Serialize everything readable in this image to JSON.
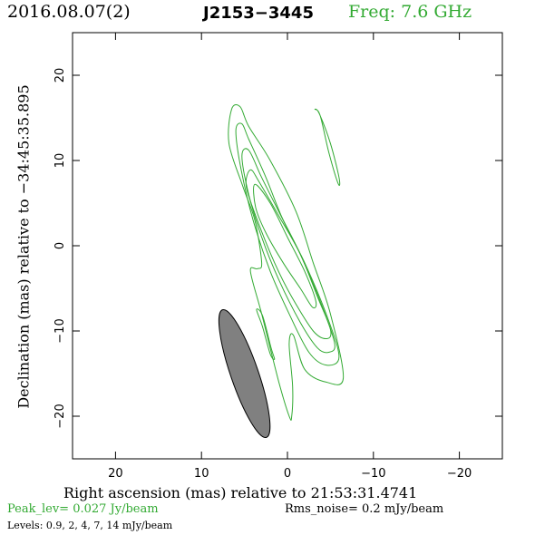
{
  "header": {
    "date": "2016.08.07(2)",
    "source": "J2153−3445",
    "frequency": "Freq: 7.6 GHz"
  },
  "footer": {
    "peak": "Peak_lev=  0.027 Jy/beam",
    "rms": "Rms_noise=   0.2 mJy/beam",
    "levels": "Levels: 0.9,    2,    4,    7,   14 mJy/beam"
  },
  "colors": {
    "contour": "#33aa33",
    "beam_fill": "#808080",
    "title_freq": "#33aa33"
  },
  "chart_data": {
    "type": "contour",
    "xlabel": "Right ascension (mas) relative to 21:53:31.4741",
    "ylabel": "Declination (mas) relative to −34:45:35.895",
    "xlim": [
      25,
      -25
    ],
    "ylim": [
      -25,
      25
    ],
    "x_ticks": [
      20,
      10,
      0,
      -10,
      -20
    ],
    "y_ticks": [
      20,
      10,
      0,
      -10,
      -20
    ],
    "x_tick_labels": [
      "20",
      "10",
      "0",
      "−10",
      "−20"
    ],
    "y_tick_labels": [
      "20",
      "10",
      "0",
      "−10",
      "−20"
    ],
    "contour_levels_mJy": [
      0.9,
      2,
      4,
      7,
      14
    ],
    "contours": [
      {
        "level": 0.9,
        "points": [
          [
            -6.5,
            -15.5
          ],
          [
            -5,
            -8
          ],
          [
            -3,
            -2
          ],
          [
            -1,
            4
          ],
          [
            2,
            10
          ],
          [
            4.5,
            14
          ],
          [
            5.5,
            16.3
          ],
          [
            6.5,
            16
          ],
          [
            6.8,
            12
          ],
          [
            5.2,
            7
          ],
          [
            3.8,
            3
          ],
          [
            3,
            -2
          ],
          [
            3.5,
            -2.7
          ],
          [
            4.3,
            -3
          ],
          [
            3,
            -8
          ],
          [
            1,
            -16
          ],
          [
            -0.2,
            -20
          ],
          [
            -0.5,
            -20
          ],
          [
            -0.6,
            -16.5
          ],
          [
            -0.2,
            -11.5
          ],
          [
            -0.7,
            -10.5
          ],
          [
            -2,
            -14.5
          ],
          [
            -4.5,
            -16
          ]
        ]
      },
      {
        "level": 0.9,
        "points": [
          [
            -3.2,
            16
          ],
          [
            -3.8,
            15.3
          ],
          [
            -4.8,
            11
          ],
          [
            -5.9,
            7.3
          ],
          [
            -6,
            8
          ],
          [
            -5,
            12
          ],
          [
            -3.7,
            15.5
          ]
        ]
      },
      {
        "level": 0.9,
        "points": [
          [
            3.6,
            -7.5
          ],
          [
            2.9,
            -8.2
          ],
          [
            1.9,
            -12
          ],
          [
            1.5,
            -13.3
          ],
          [
            2,
            -12.7
          ],
          [
            2.9,
            -9.5
          ]
        ]
      },
      {
        "level": 2,
        "points": [
          [
            -6,
            -13
          ],
          [
            -4.5,
            -8
          ],
          [
            -2,
            -2
          ],
          [
            0.5,
            3
          ],
          [
            2.5,
            8
          ],
          [
            4.5,
            12.5
          ],
          [
            5.3,
            14.3
          ],
          [
            6,
            13.5
          ],
          [
            5.4,
            9
          ],
          [
            4,
            3
          ],
          [
            2,
            -3
          ],
          [
            -0.2,
            -8
          ],
          [
            -2.5,
            -12.5
          ],
          [
            -4.5,
            -14
          ]
        ]
      },
      {
        "level": 4,
        "points": [
          [
            -5.5,
            -11.5
          ],
          [
            -4,
            -7
          ],
          [
            -1.5,
            -1
          ],
          [
            1,
            4
          ],
          [
            3,
            8
          ],
          [
            4.5,
            11.2
          ],
          [
            5.3,
            10.5
          ],
          [
            4.5,
            6
          ],
          [
            3,
            1
          ],
          [
            1,
            -4
          ],
          [
            -1.5,
            -9
          ],
          [
            -3.5,
            -12
          ],
          [
            -4.8,
            -12.5
          ]
        ]
      },
      {
        "level": 7,
        "points": [
          [
            -5,
            -9.8
          ],
          [
            -3.5,
            -6
          ],
          [
            -1.5,
            -1
          ],
          [
            1,
            3.5
          ],
          [
            3.3,
            7.5
          ],
          [
            4.3,
            8.9
          ],
          [
            4.8,
            7
          ],
          [
            3.5,
            3
          ],
          [
            1.5,
            -2
          ],
          [
            -0.5,
            -6
          ],
          [
            -3,
            -10
          ],
          [
            -4.6,
            -10.9
          ]
        ]
      },
      {
        "level": 14,
        "points": [
          [
            -3.3,
            -6.5
          ],
          [
            -2,
            -3
          ],
          [
            0,
            1
          ],
          [
            2,
            5
          ],
          [
            3.8,
            7.2
          ],
          [
            3.7,
            4.5
          ],
          [
            2.5,
            1.5
          ],
          [
            0.5,
            -2
          ],
          [
            -1.5,
            -5
          ],
          [
            -2.9,
            -7.2
          ]
        ]
      }
    ],
    "beam": {
      "center": [
        5,
        -15
      ],
      "major_mas": 15.7,
      "minor_mas": 3.2,
      "pa_deg": 19
    }
  }
}
